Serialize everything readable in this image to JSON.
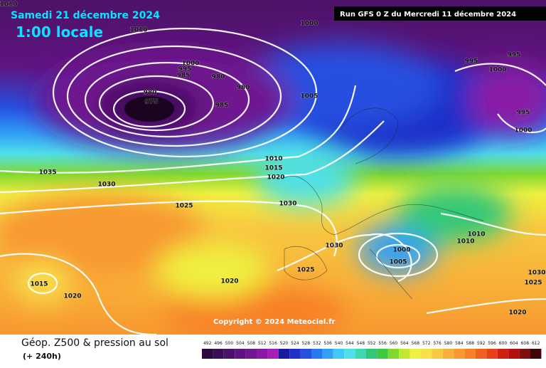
{
  "header": {
    "date": "Samedi 21 décembre 2024",
    "time": "1:00 locale",
    "run": "Run GFS 0 Z du Mercredi 11 décembre 2024"
  },
  "isobar_labels": [
    "1010",
    "1010",
    "1000",
    "1000",
    "995",
    "985",
    "980",
    "980",
    "980",
    "975",
    "985",
    "1005",
    "995",
    "995",
    "1000",
    "995",
    "1000",
    "1010",
    "1015",
    "1020",
    "1035",
    "1030",
    "1025",
    "1030",
    "1030",
    "1010",
    "1010",
    "1000",
    "1005",
    "1025",
    "1015",
    "1020",
    "1020",
    "1030",
    "1025",
    "1020"
  ],
  "copyright": "Copyright © 2024 Meteociel.fr",
  "legend": {
    "title": "Géop. Z500 & pression au sol",
    "subtitle": "(+ 240h)",
    "scale": [
      492,
      496,
      500,
      504,
      508,
      512,
      516,
      520,
      524,
      528,
      532,
      536,
      540,
      544,
      548,
      552,
      556,
      560,
      564,
      568,
      572,
      576,
      580,
      584,
      588,
      592,
      596,
      600,
      604,
      608,
      612
    ],
    "colors": [
      "#2b0a3d",
      "#3b0f55",
      "#4b126b",
      "#5e1581",
      "#70188f",
      "#8a1aa5",
      "#a51dbb",
      "#1a1aa0",
      "#1f2fc8",
      "#2550e0",
      "#2878f0",
      "#30a0f8",
      "#40c8f8",
      "#50e0e8",
      "#40d8b0",
      "#30c878",
      "#40c840",
      "#80d830",
      "#c0e830",
      "#f0f040",
      "#f8e048",
      "#f8c840",
      "#f8b038",
      "#f89830",
      "#f88028",
      "#f06020",
      "#e84018",
      "#d02010",
      "#b01010",
      "#801010",
      "#400808"
    ]
  }
}
